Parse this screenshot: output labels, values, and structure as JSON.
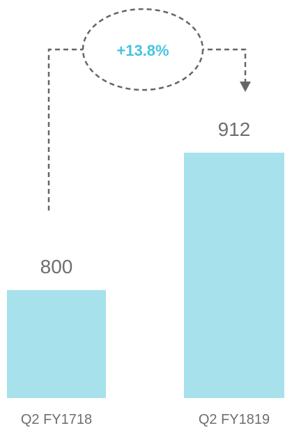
{
  "colors": {
    "bar": "#a6e1ec",
    "accent": "#45c4de",
    "connector": "#666666",
    "text": "#6e6e6e"
  },
  "chart_data": {
    "type": "bar",
    "categories": [
      "Q2 FY1718",
      "Q2 FY1819"
    ],
    "values": [
      800,
      912
    ],
    "data_labels": [
      "800",
      "912"
    ],
    "annotation": "+13.8%",
    "ylim": [
      0,
      912
    ]
  }
}
